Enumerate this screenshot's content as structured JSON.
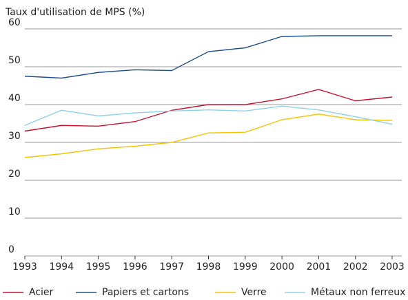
{
  "chart_data": {
    "type": "line",
    "title": "Taux d'utilisation de MPS (%)",
    "x": [
      1993,
      1994,
      1995,
      1996,
      1997,
      1998,
      1999,
      2000,
      2001,
      2002,
      2003
    ],
    "xlim": [
      1993,
      2003
    ],
    "xticks": [
      1993,
      1994,
      1995,
      1996,
      1997,
      1998,
      1999,
      2000,
      2001,
      2002,
      2003
    ],
    "ylim": [
      0,
      60
    ],
    "yticks": [
      0,
      10,
      20,
      30,
      40,
      50,
      60
    ],
    "grid": true,
    "series": [
      {
        "name": "Acier",
        "color": "#c8102e",
        "values": [
          33,
          34.5,
          34.3,
          35.5,
          38.5,
          40,
          40,
          41.5,
          44,
          41,
          42
        ]
      },
      {
        "name": "Papiers et cartons",
        "color": "#1f4e8c",
        "values": [
          47.5,
          47,
          48.5,
          49.2,
          49,
          54,
          55,
          58,
          58.2,
          58.2,
          58.2
        ]
      },
      {
        "name": "Verre",
        "color": "#f5c400",
        "values": [
          26,
          27,
          28.3,
          29,
          30,
          32.5,
          32.7,
          36,
          37.5,
          36,
          35.8
        ]
      },
      {
        "name": "Métaux non ferreux",
        "color": "#8fd0e8",
        "values": [
          34.5,
          38.5,
          37,
          37.8,
          38.3,
          38.6,
          38.3,
          39.6,
          38.6,
          36.8,
          34.8
        ]
      }
    ]
  }
}
